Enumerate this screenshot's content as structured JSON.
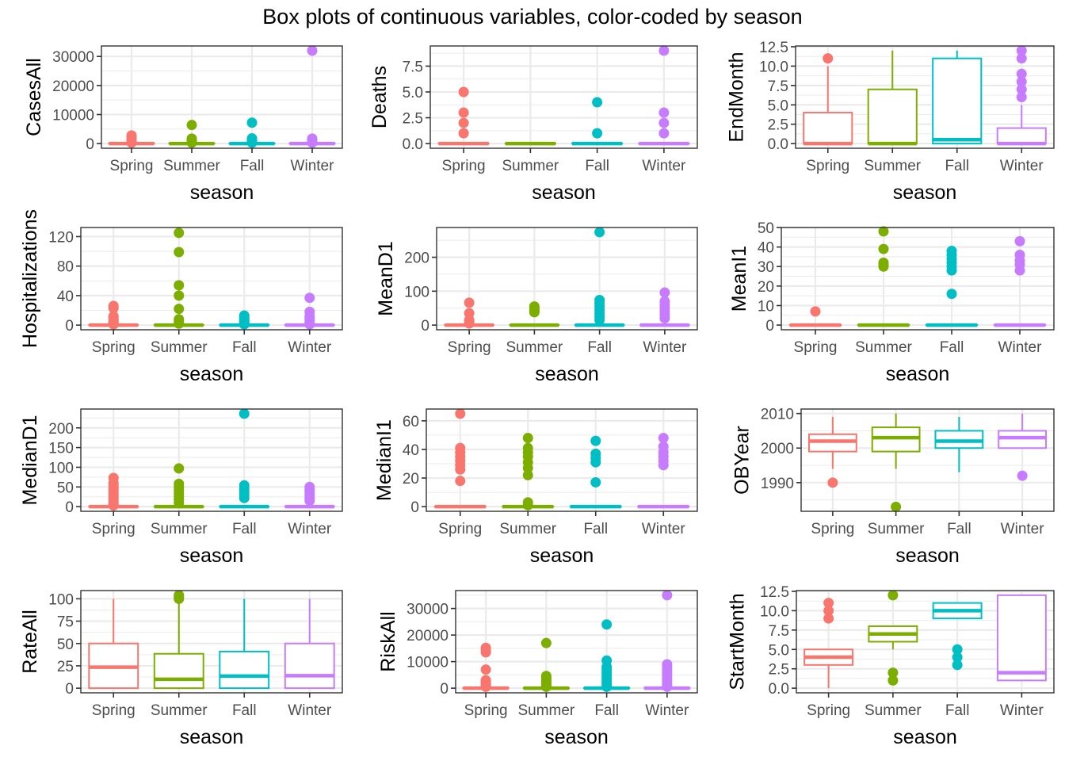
{
  "title": "Box plots of continuous variables, color-coded by season",
  "season_colors": {
    "Spring": "#F8766D",
    "Summer": "#7CAE00",
    "Fall": "#00BFC4",
    "Winter": "#C77CFF"
  },
  "chart_data": [
    {
      "type": "box",
      "title": "",
      "xlabel": "season",
      "ylabel": "CasesAll",
      "categories": [
        "Spring",
        "Summer",
        "Fall",
        "Winter"
      ],
      "ylim": [
        -1600,
        33600
      ],
      "yticks": [
        0,
        10000,
        20000,
        30000
      ],
      "yticklabels": [
        "0",
        "10000",
        "20000",
        "30000"
      ],
      "grid": true,
      "series": [
        {
          "name": "Spring",
          "q1": 0,
          "median": 0,
          "q3": 60,
          "whisker_low": 0,
          "whisker_high": 150,
          "outliers": [
            300,
            600,
            900,
            1200,
            1600,
            2000,
            2400,
            2800
          ]
        },
        {
          "name": "Summer",
          "q1": 0,
          "median": 0,
          "q3": 60,
          "whisker_low": 0,
          "whisker_high": 150,
          "outliers": [
            300,
            600,
            900,
            1300,
            1700,
            6400
          ]
        },
        {
          "name": "Fall",
          "q1": 0,
          "median": 0,
          "q3": 60,
          "whisker_low": 0,
          "whisker_high": 150,
          "outliers": [
            300,
            600,
            1000,
            1400,
            1800,
            7200
          ]
        },
        {
          "name": "Winter",
          "q1": 0,
          "median": 0,
          "q3": 60,
          "whisker_low": 0,
          "whisker_high": 150,
          "outliers": [
            300,
            600,
            900,
            1300,
            1700,
            32000
          ]
        }
      ]
    },
    {
      "type": "box",
      "title": "",
      "xlabel": "season",
      "ylabel": "Deaths",
      "categories": [
        "Spring",
        "Summer",
        "Fall",
        "Winter"
      ],
      "ylim": [
        -0.45,
        9.45
      ],
      "yticks": [
        0,
        2.5,
        5,
        7.5
      ],
      "yticklabels": [
        "0.0",
        "2.5",
        "5.0",
        "7.5"
      ],
      "grid": true,
      "series": [
        {
          "name": "Spring",
          "q1": 0,
          "median": 0,
          "q3": 0,
          "whisker_low": 0,
          "whisker_high": 0,
          "outliers": [
            1,
            2,
            3,
            5
          ]
        },
        {
          "name": "Summer",
          "q1": 0,
          "median": 0,
          "q3": 0,
          "whisker_low": 0,
          "whisker_high": 0,
          "outliers": []
        },
        {
          "name": "Fall",
          "q1": 0,
          "median": 0,
          "q3": 0,
          "whisker_low": 0,
          "whisker_high": 0,
          "outliers": [
            1,
            4
          ]
        },
        {
          "name": "Winter",
          "q1": 0,
          "median": 0,
          "q3": 0,
          "whisker_low": 0,
          "whisker_high": 0,
          "outliers": [
            1,
            2,
            3,
            9
          ]
        }
      ]
    },
    {
      "type": "box",
      "title": "",
      "xlabel": "season",
      "ylabel": "EndMonth",
      "categories": [
        "Spring",
        "Summer",
        "Fall",
        "Winter"
      ],
      "ylim": [
        -0.6,
        12.6
      ],
      "yticks": [
        0,
        2.5,
        5,
        7.5,
        10,
        12.5
      ],
      "yticklabels": [
        "0.0",
        "2.5",
        "5.0",
        "7.5",
        "10.0",
        "12.5"
      ],
      "grid": true,
      "series": [
        {
          "name": "Spring",
          "q1": 0,
          "median": 0,
          "q3": 4,
          "whisker_low": 0,
          "whisker_high": 10,
          "outliers": [
            11
          ]
        },
        {
          "name": "Summer",
          "q1": 0,
          "median": 0,
          "q3": 7,
          "whisker_low": 0,
          "whisker_high": 12,
          "outliers": []
        },
        {
          "name": "Fall",
          "q1": 0,
          "median": 0.5,
          "q3": 11,
          "whisker_low": 0,
          "whisker_high": 12,
          "outliers": []
        },
        {
          "name": "Winter",
          "q1": 0,
          "median": 0,
          "q3": 2,
          "whisker_low": 0,
          "whisker_high": 5,
          "outliers": [
            6,
            7,
            8,
            9,
            11,
            12
          ]
        }
      ]
    },
    {
      "type": "box",
      "title": "",
      "xlabel": "season",
      "ylabel": "Hospitalizations",
      "categories": [
        "Spring",
        "Summer",
        "Fall",
        "Winter"
      ],
      "ylim": [
        -6.3,
        132.3
      ],
      "yticks": [
        0,
        40,
        80,
        120
      ],
      "yticklabels": [
        "0",
        "40",
        "80",
        "120"
      ],
      "grid": true,
      "series": [
        {
          "name": "Spring",
          "q1": 0,
          "median": 0,
          "q3": 0,
          "whisker_low": 0,
          "whisker_high": 0,
          "outliers": [
            1,
            2,
            4,
            6,
            8,
            10,
            12,
            23,
            26
          ]
        },
        {
          "name": "Summer",
          "q1": 0,
          "median": 0,
          "q3": 0,
          "whisker_low": 0,
          "whisker_high": 0,
          "outliers": [
            2,
            5,
            8,
            22,
            40,
            54,
            99,
            125
          ]
        },
        {
          "name": "Fall",
          "q1": 0,
          "median": 0,
          "q3": 0,
          "whisker_low": 0,
          "whisker_high": 0,
          "outliers": [
            1,
            3,
            5,
            7,
            9,
            11,
            13
          ]
        },
        {
          "name": "Winter",
          "q1": 0,
          "median": 0,
          "q3": 0,
          "whisker_low": 0,
          "whisker_high": 0,
          "outliers": [
            1,
            3,
            6,
            9,
            12,
            18,
            37
          ]
        }
      ]
    },
    {
      "type": "box",
      "title": "",
      "xlabel": "season",
      "ylabel": "MeanD1",
      "categories": [
        "Spring",
        "Summer",
        "Fall",
        "Winter"
      ],
      "ylim": [
        -13.7,
        287.7
      ],
      "yticks": [
        0,
        100,
        200
      ],
      "yticklabels": [
        "0",
        "100",
        "200"
      ],
      "grid": true,
      "series": [
        {
          "name": "Spring",
          "q1": 0,
          "median": 0,
          "q3": 0,
          "whisker_low": 0,
          "whisker_high": 0,
          "outliers": [
            5,
            10,
            15,
            35,
            66
          ]
        },
        {
          "name": "Summer",
          "q1": 0,
          "median": 0,
          "q3": 0,
          "whisker_low": 0,
          "whisker_high": 0,
          "outliers": [
            38,
            42,
            46,
            50,
            55
          ]
        },
        {
          "name": "Fall",
          "q1": 0,
          "median": 0,
          "q3": 0,
          "whisker_low": 0,
          "whisker_high": 0,
          "outliers": [
            15,
            25,
            35,
            45,
            55,
            65,
            74,
            274
          ]
        },
        {
          "name": "Winter",
          "q1": 0,
          "median": 0,
          "q3": 0,
          "whisker_low": 0,
          "whisker_high": 0,
          "outliers": [
            20,
            30,
            40,
            50,
            60,
            70,
            96
          ]
        }
      ]
    },
    {
      "type": "box",
      "title": "",
      "xlabel": "season",
      "ylabel": "MeanI1",
      "categories": [
        "Spring",
        "Summer",
        "Fall",
        "Winter"
      ],
      "ylim": [
        -2.4,
        50
      ],
      "yticks": [
        0,
        10,
        20,
        30,
        40,
        50
      ],
      "yticklabels": [
        "0",
        "10",
        "20",
        "30",
        "40",
        "50"
      ],
      "grid": true,
      "series": [
        {
          "name": "Spring",
          "q1": 0,
          "median": 0,
          "q3": 0,
          "whisker_low": 0,
          "whisker_high": 0,
          "outliers": [
            7
          ]
        },
        {
          "name": "Summer",
          "q1": 0,
          "median": 0,
          "q3": 0,
          "whisker_low": 0,
          "whisker_high": 0,
          "outliers": [
            30,
            31,
            32,
            39,
            48
          ]
        },
        {
          "name": "Fall",
          "q1": 0,
          "median": 0,
          "q3": 0,
          "whisker_low": 0,
          "whisker_high": 0,
          "outliers": [
            16,
            28,
            30,
            32,
            34,
            36,
            38
          ]
        },
        {
          "name": "Winter",
          "q1": 0,
          "median": 0,
          "q3": 0,
          "whisker_low": 0,
          "whisker_high": 0,
          "outliers": [
            28,
            31,
            33,
            36,
            43
          ]
        }
      ]
    },
    {
      "type": "box",
      "title": "",
      "xlabel": "season",
      "ylabel": "MedianD1",
      "categories": [
        "Spring",
        "Summer",
        "Fall",
        "Winter"
      ],
      "ylim": [
        -11.8,
        247.8
      ],
      "yticks": [
        0,
        50,
        100,
        150,
        200
      ],
      "yticklabels": [
        "0",
        "50",
        "100",
        "150",
        "200"
      ],
      "grid": true,
      "series": [
        {
          "name": "Spring",
          "q1": 0,
          "median": 0,
          "q3": 0,
          "whisker_low": 0,
          "whisker_high": 0,
          "outliers": [
            3,
            8,
            13,
            18,
            24,
            30,
            36,
            42,
            48,
            54,
            60,
            73
          ]
        },
        {
          "name": "Summer",
          "q1": 0,
          "median": 0,
          "q3": 0,
          "whisker_low": 0,
          "whisker_high": 0,
          "outliers": [
            10,
            18,
            26,
            34,
            42,
            50,
            58,
            97
          ]
        },
        {
          "name": "Fall",
          "q1": 0,
          "median": 0,
          "q3": 0,
          "whisker_low": 0,
          "whisker_high": 0,
          "outliers": [
            22,
            30,
            38,
            46,
            54,
            236
          ]
        },
        {
          "name": "Winter",
          "q1": 0,
          "median": 0,
          "q3": 0,
          "whisker_low": 0,
          "whisker_high": 0,
          "outliers": [
            15,
            22,
            29,
            36,
            43,
            50
          ]
        }
      ]
    },
    {
      "type": "box",
      "title": "",
      "xlabel": "season",
      "ylabel": "MedianI1",
      "categories": [
        "Spring",
        "Summer",
        "Fall",
        "Winter"
      ],
      "ylim": [
        -3.25,
        68.25
      ],
      "yticks": [
        0,
        20,
        40,
        60
      ],
      "yticklabels": [
        "0",
        "20",
        "40",
        "60"
      ],
      "grid": true,
      "series": [
        {
          "name": "Spring",
          "q1": 0,
          "median": 0,
          "q3": 0,
          "whisker_low": 0,
          "whisker_high": 0,
          "outliers": [
            18,
            26,
            29,
            32,
            35,
            38,
            41,
            65
          ]
        },
        {
          "name": "Summer",
          "q1": 0,
          "median": 0,
          "q3": 0,
          "whisker_low": 0,
          "whisker_high": 0,
          "outliers": [
            1,
            3,
            22,
            27,
            31,
            35,
            38,
            41,
            48
          ]
        },
        {
          "name": "Fall",
          "q1": 0,
          "median": 0,
          "q3": 0,
          "whisker_low": 0,
          "whisker_high": 0,
          "outliers": [
            17,
            31,
            34,
            37,
            46
          ]
        },
        {
          "name": "Winter",
          "q1": 0,
          "median": 0,
          "q3": 0,
          "whisker_low": 0,
          "whisker_high": 0,
          "outliers": [
            29,
            32,
            35,
            38,
            42,
            48
          ]
        }
      ]
    },
    {
      "type": "box",
      "title": "",
      "xlabel": "season",
      "ylabel": "OBYear",
      "categories": [
        "Spring",
        "Summer",
        "Fall",
        "Winter"
      ],
      "ylim": [
        1981.7,
        2011.3
      ],
      "yticks": [
        1990,
        2000,
        2010
      ],
      "yticklabels": [
        "1990",
        "2000",
        "2010"
      ],
      "grid": true,
      "series": [
        {
          "name": "Spring",
          "q1": 1999,
          "median": 2002,
          "q3": 2004,
          "whisker_low": 1994,
          "whisker_high": 2009,
          "outliers": [
            1990
          ]
        },
        {
          "name": "Summer",
          "q1": 1999,
          "median": 2003,
          "q3": 2006,
          "whisker_low": 1994,
          "whisker_high": 2010,
          "outliers": [
            1983
          ]
        },
        {
          "name": "Fall",
          "q1": 2000,
          "median": 2002,
          "q3": 2005,
          "whisker_low": 1993,
          "whisker_high": 2009,
          "outliers": []
        },
        {
          "name": "Winter",
          "q1": 2000,
          "median": 2003,
          "q3": 2005,
          "whisker_low": 2000,
          "whisker_high": 2010,
          "outliers": [
            1992
          ]
        }
      ]
    },
    {
      "type": "box",
      "title": "",
      "xlabel": "season",
      "ylabel": "RateAll",
      "categories": [
        "Spring",
        "Summer",
        "Fall",
        "Winter"
      ],
      "ylim": [
        -5.2,
        109.2
      ],
      "yticks": [
        0,
        25,
        50,
        75,
        100
      ],
      "yticklabels": [
        "0",
        "25",
        "50",
        "75",
        "100"
      ],
      "grid": true,
      "series": [
        {
          "name": "Spring",
          "q1": 0,
          "median": 23.5,
          "q3": 50,
          "whisker_low": 0,
          "whisker_high": 100,
          "outliers": []
        },
        {
          "name": "Summer",
          "q1": 0,
          "median": 10,
          "q3": 38.5,
          "whisker_low": 0,
          "whisker_high": 96,
          "outliers": [
            100,
            102,
            104
          ]
        },
        {
          "name": "Fall",
          "q1": 0,
          "median": 13.5,
          "q3": 41,
          "whisker_low": 0,
          "whisker_high": 100,
          "outliers": []
        },
        {
          "name": "Winter",
          "q1": 0,
          "median": 14,
          "q3": 50,
          "whisker_low": 0,
          "whisker_high": 100,
          "outliers": []
        }
      ]
    },
    {
      "type": "box",
      "title": "",
      "xlabel": "season",
      "ylabel": "RiskAll",
      "categories": [
        "Spring",
        "Summer",
        "Fall",
        "Winter"
      ],
      "ylim": [
        -1750,
        36750
      ],
      "yticks": [
        0,
        10000,
        20000,
        30000
      ],
      "yticklabels": [
        "0",
        "10000",
        "20000",
        "30000"
      ],
      "grid": true,
      "series": [
        {
          "name": "Spring",
          "q1": 0,
          "median": 0,
          "q3": 100,
          "whisker_low": 0,
          "whisker_high": 250,
          "outliers": [
            500,
            1000,
            1500,
            2000,
            2500,
            3000,
            7000,
            13500,
            14500,
            15200
          ]
        },
        {
          "name": "Summer",
          "q1": 0,
          "median": 0,
          "q3": 100,
          "whisker_low": 0,
          "whisker_high": 250,
          "outliers": [
            500,
            1000,
            1500,
            2000,
            2500,
            3000,
            3500,
            4000,
            4600,
            17000
          ]
        },
        {
          "name": "Fall",
          "q1": 0,
          "median": 0,
          "q3": 100,
          "whisker_low": 0,
          "whisker_high": 250,
          "outliers": [
            500,
            1000,
            2000,
            3000,
            4000,
            5000,
            6000,
            7000,
            8000,
            10400,
            24000
          ]
        },
        {
          "name": "Winter",
          "q1": 0,
          "median": 0,
          "q3": 100,
          "whisker_low": 0,
          "whisker_high": 250,
          "outliers": [
            500,
            1000,
            2000,
            3000,
            4000,
            5000,
            6000,
            7000,
            8000,
            9000,
            35000
          ]
        }
      ]
    },
    {
      "type": "box",
      "title": "",
      "xlabel": "season",
      "ylabel": "StartMonth",
      "categories": [
        "Spring",
        "Summer",
        "Fall",
        "Winter"
      ],
      "ylim": [
        -0.6,
        12.6
      ],
      "yticks": [
        0,
        2.5,
        5,
        7.5,
        10,
        12.5
      ],
      "yticklabels": [
        "0.0",
        "2.5",
        "5.0",
        "7.5",
        "10.0",
        "12.5"
      ],
      "grid": true,
      "series": [
        {
          "name": "Spring",
          "q1": 3,
          "median": 4,
          "q3": 5,
          "whisker_low": 0,
          "whisker_high": 5,
          "outliers": [
            9,
            10,
            11
          ]
        },
        {
          "name": "Summer",
          "q1": 6,
          "median": 7,
          "q3": 8,
          "whisker_low": 5,
          "whisker_high": 8,
          "outliers": [
            1,
            2,
            12
          ]
        },
        {
          "name": "Fall",
          "q1": 9,
          "median": 10,
          "q3": 11,
          "whisker_low": 9,
          "whisker_high": 11,
          "outliers": [
            3,
            4,
            5
          ]
        },
        {
          "name": "Winter",
          "q1": 1,
          "median": 2,
          "q3": 12,
          "whisker_low": 1,
          "whisker_high": 12,
          "outliers": []
        }
      ]
    }
  ]
}
